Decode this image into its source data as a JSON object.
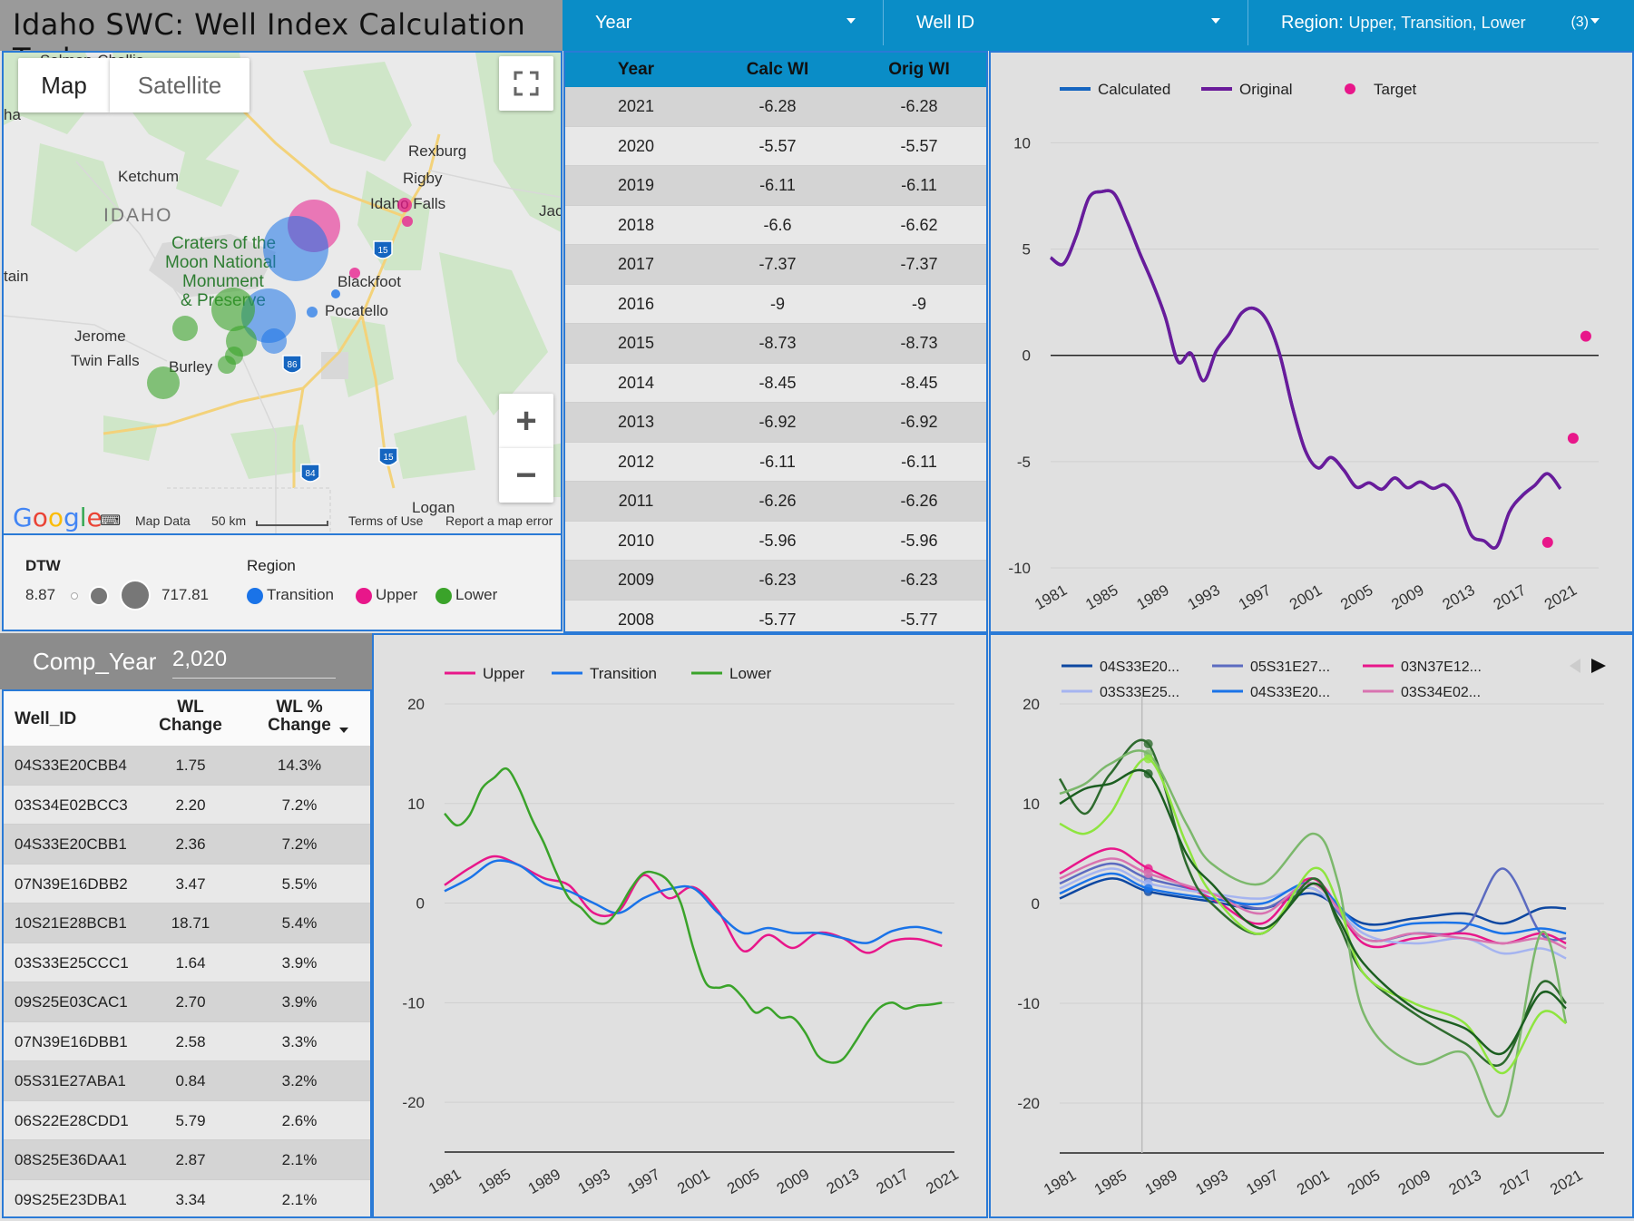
{
  "header": {
    "title": "Idaho SWC: Well Index Calculation Tool"
  },
  "filters": {
    "year_label": "Year",
    "wellid_label": "Well ID",
    "region_label": "Region:",
    "region_value": "Upper, Transition, Lower",
    "region_count": "(3)"
  },
  "map": {
    "tab_map": "Map",
    "tab_satellite": "Satellite",
    "fullscreen_icon": "fullscreen-icon",
    "zoom_in": "+",
    "zoom_out": "−",
    "google_logo": "Google",
    "map_data": "Map Data",
    "scale": "50 km",
    "terms": "Terms of Use",
    "report": "Report a map error",
    "places": [
      "Salmon-Challis",
      "Rexburg",
      "Rigby",
      "Ketchum",
      "IDAHO",
      "Idaho Falls",
      "Jackson",
      "Craters of the",
      "Moon National",
      "Monument",
      "& Preserve",
      "Blackfoot",
      "Pocatello",
      "Jerome",
      "Twin Falls",
      "Burley",
      "Logan",
      "tain",
      "ha"
    ],
    "shields": [
      "15",
      "86",
      "15",
      "84"
    ]
  },
  "legend": {
    "dtw_title": "DTW",
    "dtw_min": "8.87",
    "dtw_max": "717.81",
    "region_title": "Region",
    "items": [
      {
        "label": "Transition",
        "color": "#1a73e8"
      },
      {
        "label": "Upper",
        "color": "#e8178a"
      },
      {
        "label": "Lower",
        "color": "#3aa32a"
      }
    ]
  },
  "year_table": {
    "headers": [
      "Year",
      "Calc WI",
      "Orig WI"
    ],
    "rows": [
      [
        "2021",
        "-6.28",
        "-6.28"
      ],
      [
        "2020",
        "-5.57",
        "-5.57"
      ],
      [
        "2019",
        "-6.11",
        "-6.11"
      ],
      [
        "2018",
        "-6.6",
        "-6.62"
      ],
      [
        "2017",
        "-7.37",
        "-7.37"
      ],
      [
        "2016",
        "-9",
        "-9"
      ],
      [
        "2015",
        "-8.73",
        "-8.73"
      ],
      [
        "2014",
        "-8.45",
        "-8.45"
      ],
      [
        "2013",
        "-6.92",
        "-6.92"
      ],
      [
        "2012",
        "-6.11",
        "-6.11"
      ],
      [
        "2011",
        "-6.26",
        "-6.26"
      ],
      [
        "2010",
        "-5.96",
        "-5.96"
      ],
      [
        "2009",
        "-6.23",
        "-6.23"
      ],
      [
        "2008",
        "-5.77",
        "-5.77"
      ]
    ]
  },
  "comp_year": {
    "label": "Comp_Year",
    "value": "2,020"
  },
  "well_table": {
    "headers": [
      "Well_ID",
      "WL\nChange",
      "WL %\nChange"
    ],
    "rows": [
      [
        "04S33E20CBB4",
        "1.75",
        "14.3%"
      ],
      [
        "03S34E02BCC3",
        "2.20",
        "7.2%"
      ],
      [
        "04S33E20CBB1",
        "2.36",
        "7.2%"
      ],
      [
        "07N39E16DBB2",
        "3.47",
        "5.5%"
      ],
      [
        "10S21E28BCB1",
        "18.71",
        "5.4%"
      ],
      [
        "03S33E25CCC1",
        "1.64",
        "3.9%"
      ],
      [
        "09S25E03CAC1",
        "2.70",
        "3.9%"
      ],
      [
        "07N39E16DBB1",
        "2.58",
        "3.3%"
      ],
      [
        "05S31E27ABA1",
        "0.84",
        "3.2%"
      ],
      [
        "06S22E28CDD1",
        "5.79",
        "2.6%"
      ],
      [
        "08S25E36DAA1",
        "2.87",
        "2.1%"
      ],
      [
        "09S25E23DBA1",
        "3.34",
        "2.1%"
      ]
    ]
  },
  "chart_data": [
    {
      "type": "line",
      "legend_position": "top-left",
      "x_ticks": [
        "1981",
        "1985",
        "1989",
        "1993",
        "1997",
        "2001",
        "2005",
        "2009",
        "2013",
        "2017",
        "2021"
      ],
      "y_ticks": [
        10,
        5,
        0,
        -5,
        -10
      ],
      "ylim": [
        -10,
        11
      ],
      "xlim": [
        1981,
        2024
      ],
      "series": [
        {
          "name": "Calculated",
          "color": "#1565c0",
          "x": [
            1981,
            1982,
            1983,
            1984,
            1985,
            1986,
            1987,
            1988,
            1989,
            1990,
            1991,
            1992,
            1993,
            1994,
            1995,
            1996,
            1997,
            1998,
            1999,
            2000,
            2001,
            2002,
            2003,
            2004,
            2005,
            2006,
            2007,
            2008,
            2009,
            2010,
            2011,
            2012,
            2013,
            2014,
            2015,
            2016,
            2017,
            2018,
            2019,
            2020,
            2021
          ],
          "values": [
            4.6,
            4.3,
            5.6,
            7.4,
            7.7,
            7.6,
            6.3,
            4.8,
            3.4,
            1.8,
            -0.3,
            0.1,
            -1.2,
            0.2,
            1.0,
            2.0,
            2.2,
            1.6,
            0.0,
            -2.5,
            -4.5,
            -5.3,
            -4.8,
            -5.4,
            -6.2,
            -6.0,
            -6.3,
            -5.77,
            -6.23,
            -5.96,
            -6.26,
            -6.11,
            -6.92,
            -8.45,
            -8.73,
            -9.0,
            -7.37,
            -6.6,
            -6.11,
            -5.57,
            -6.28
          ]
        },
        {
          "name": "Original",
          "color": "#6a1b9a",
          "x": [
            1981,
            1982,
            1983,
            1984,
            1985,
            1986,
            1987,
            1988,
            1989,
            1990,
            1991,
            1992,
            1993,
            1994,
            1995,
            1996,
            1997,
            1998,
            1999,
            2000,
            2001,
            2002,
            2003,
            2004,
            2005,
            2006,
            2007,
            2008,
            2009,
            2010,
            2011,
            2012,
            2013,
            2014,
            2015,
            2016,
            2017,
            2018,
            2019,
            2020,
            2021
          ],
          "values": [
            4.6,
            4.3,
            5.6,
            7.4,
            7.7,
            7.6,
            6.3,
            4.8,
            3.4,
            1.8,
            -0.3,
            0.1,
            -1.2,
            0.2,
            1.0,
            2.0,
            2.2,
            1.6,
            0.0,
            -2.5,
            -4.5,
            -5.3,
            -4.8,
            -5.4,
            -6.2,
            -6.0,
            -6.3,
            -5.77,
            -6.23,
            -5.96,
            -6.26,
            -6.11,
            -6.92,
            -8.45,
            -8.73,
            -9.0,
            -7.37,
            -6.62,
            -6.11,
            -5.57,
            -6.28
          ]
        },
        {
          "name": "Target",
          "color": "#e8178a",
          "type": "scatter",
          "x": [
            2020,
            2022,
            2023
          ],
          "values": [
            -8.8,
            -3.9,
            0.9
          ]
        }
      ]
    },
    {
      "type": "line",
      "legend_position": "top-left",
      "x_ticks": [
        "1981",
        "1985",
        "1989",
        "1993",
        "1997",
        "2001",
        "2005",
        "2009",
        "2013",
        "2017",
        "2021"
      ],
      "y_ticks": [
        20,
        10,
        0,
        -10,
        -20
      ],
      "ylim": [
        -25,
        20
      ],
      "xlim": [
        1981,
        2022
      ],
      "series": [
        {
          "name": "Upper",
          "color": "#e8178a",
          "x": [
            1981,
            1983,
            1985,
            1987,
            1989,
            1991,
            1993,
            1995,
            1997,
            1999,
            2001,
            2003,
            2005,
            2007,
            2009,
            2011,
            2013,
            2015,
            2017,
            2019,
            2021
          ],
          "values": [
            1.8,
            3.5,
            4.7,
            3.8,
            2.5,
            1.8,
            -1.0,
            -0.8,
            2.8,
            0.5,
            1.6,
            -0.8,
            -4.8,
            -3.2,
            -4.5,
            -3.0,
            -3.5,
            -5.0,
            -3.8,
            -3.6,
            -4.3
          ]
        },
        {
          "name": "Transition",
          "color": "#1a73e8",
          "x": [
            1981,
            1983,
            1985,
            1987,
            1989,
            1991,
            1993,
            1995,
            1997,
            1999,
            2001,
            2003,
            2005,
            2007,
            2009,
            2011,
            2013,
            2015,
            2017,
            2019,
            2021
          ],
          "values": [
            1.2,
            2.5,
            4.2,
            3.8,
            2.0,
            1.2,
            0.0,
            -1.0,
            0.5,
            1.4,
            1.5,
            -1.0,
            -3.0,
            -2.5,
            -3.0,
            -3.0,
            -3.5,
            -4.0,
            -2.8,
            -2.4,
            -3.0
          ]
        },
        {
          "name": "Lower",
          "color": "#3aa32a",
          "x": [
            1981,
            1982,
            1983,
            1984,
            1985,
            1986,
            1987,
            1988,
            1989,
            1990,
            1991,
            1992,
            1993,
            1994,
            1995,
            1996,
            1997,
            1998,
            1999,
            2000,
            2001,
            2002,
            2003,
            2004,
            2005,
            2006,
            2007,
            2008,
            2009,
            2010,
            2011,
            2012,
            2013,
            2014,
            2015,
            2016,
            2017,
            2018,
            2019,
            2020,
            2021
          ],
          "values": [
            9.0,
            7.8,
            8.8,
            11.5,
            12.6,
            13.5,
            11.5,
            8.5,
            6.0,
            3.0,
            0.5,
            -0.5,
            -1.8,
            -2.0,
            -0.6,
            1.5,
            3.0,
            3.0,
            2.2,
            0.0,
            -4.5,
            -8.0,
            -8.5,
            -8.3,
            -9.5,
            -11.0,
            -10.5,
            -11.5,
            -11.5,
            -13.0,
            -15.3,
            -16.0,
            -15.7,
            -14.0,
            -12.0,
            -10.5,
            -10.0,
            -10.6,
            -10.3,
            -10.2,
            -10.0
          ]
        }
      ]
    },
    {
      "type": "line",
      "legend_position": "top",
      "x_ticks": [
        "1981",
        "1985",
        "1989",
        "1993",
        "1997",
        "2001",
        "2005",
        "2009",
        "2013",
        "2017",
        "2021"
      ],
      "y_ticks": [
        20,
        10,
        0,
        -10,
        -20
      ],
      "ylim": [
        -25,
        20
      ],
      "xlim": [
        1981,
        2024
      ],
      "legend_labels": [
        "04S33E20...",
        "05S31E27...",
        "03N37E12...",
        "03S33E25...",
        "04S33E20...",
        "03S34E02..."
      ],
      "series": [
        {
          "name": "04S33E20...",
          "color": "#0d47a1",
          "x": [
            1981,
            1985,
            1988,
            1993,
            1997,
            2001,
            2005,
            2009,
            2013,
            2016,
            2019,
            2021
          ],
          "values": [
            0.5,
            2.5,
            1.2,
            0.2,
            -0.5,
            1.0,
            -2.0,
            -1.5,
            -1.0,
            -2.0,
            -0.5,
            -0.5
          ]
        },
        {
          "name": "05S31E27...",
          "color": "#5c6bc0",
          "x": [
            1981,
            1985,
            1988,
            1993,
            1997,
            2001,
            2005,
            2009,
            2013,
            2016,
            2019,
            2021
          ],
          "values": [
            2.0,
            4.0,
            2.5,
            1.0,
            -0.5,
            1.5,
            -3.5,
            -3.0,
            -2.5,
            3.5,
            -3.0,
            -3.5
          ]
        },
        {
          "name": "03N37E12...",
          "color": "#e8178a",
          "x": [
            1981,
            1985,
            1988,
            1993,
            1997,
            2001,
            2005,
            2009,
            2013,
            2016,
            2019,
            2021
          ],
          "values": [
            3.0,
            5.5,
            3.5,
            0.5,
            -2.0,
            2.5,
            -4.0,
            -3.5,
            -3.0,
            -4.0,
            -3.0,
            -4.0
          ]
        },
        {
          "name": "03S33E25...",
          "color": "#a5b4f0",
          "x": [
            1981,
            1985,
            1988,
            1993,
            1997,
            2001,
            2005,
            2009,
            2013,
            2016,
            2019,
            2021
          ],
          "values": [
            1.5,
            3.5,
            2.0,
            1.0,
            0.5,
            1.5,
            -3.0,
            -4.0,
            -3.5,
            -5.0,
            -4.5,
            -5.5
          ]
        },
        {
          "name": "04S33E20...",
          "color": "#1a73e8",
          "x": [
            1981,
            1985,
            1988,
            1993,
            1997,
            2001,
            2005,
            2009,
            2013,
            2016,
            2019,
            2021
          ],
          "values": [
            1.0,
            3.0,
            1.5,
            0.5,
            0.0,
            2.0,
            -2.5,
            -2.0,
            -2.0,
            -3.0,
            -2.5,
            -3.0
          ]
        },
        {
          "name": "03S34E02...",
          "color": "#d873b0",
          "x": [
            1981,
            1985,
            1988,
            1993,
            1997,
            2001,
            2005,
            2009,
            2013,
            2016,
            2019,
            2021
          ],
          "values": [
            2.5,
            4.5,
            3.0,
            1.0,
            -1.0,
            2.0,
            -3.5,
            -3.0,
            -3.5,
            -4.0,
            -3.5,
            -4.5
          ]
        },
        {
          "color": "#2e6b2e",
          "x": [
            1981,
            1983,
            1985,
            1988,
            1991,
            1993,
            1997,
            2001,
            2003,
            2005,
            2009,
            2013,
            2016,
            2019,
            2021
          ],
          "values": [
            12.5,
            9.0,
            13.0,
            16.0,
            4.0,
            0.0,
            -3.0,
            2.5,
            -2.0,
            -7.0,
            -11.0,
            -14.0,
            -16.0,
            -8.0,
            -10.0
          ]
        },
        {
          "color": "#7cb86c",
          "x": [
            1981,
            1983,
            1985,
            1988,
            1991,
            1993,
            1997,
            2001,
            2003,
            2005,
            2009,
            2013,
            2016,
            2019,
            2021
          ],
          "values": [
            11.0,
            12.0,
            14.0,
            15.0,
            8.0,
            4.0,
            2.0,
            7.0,
            2.0,
            -11.0,
            -16.0,
            -15.0,
            -21.0,
            -3.0,
            -12.0
          ]
        },
        {
          "color": "#8ee53f",
          "x": [
            1981,
            1983,
            1985,
            1988,
            1991,
            1993,
            1997,
            2001,
            2003,
            2005,
            2009,
            2013,
            2016,
            2019,
            2021
          ],
          "values": [
            8.0,
            7.0,
            9.0,
            14.5,
            6.0,
            1.0,
            -3.0,
            3.5,
            0.0,
            -7.0,
            -10.0,
            -12.0,
            -17.0,
            -11.0,
            -12.0
          ]
        },
        {
          "color": "#1b5e20",
          "x": [
            1981,
            1983,
            1985,
            1988,
            1991,
            1993,
            1997,
            2001,
            2003,
            2005,
            2009,
            2013,
            2016,
            2019,
            2021
          ],
          "values": [
            10.0,
            11.5,
            12.0,
            13.0,
            5.0,
            2.0,
            -2.5,
            2.0,
            -1.5,
            -6.0,
            -10.5,
            -12.5,
            -15.0,
            -9.0,
            -10.5
          ]
        }
      ]
    }
  ],
  "legends": {
    "wi": [
      "Calculated",
      "Original",
      "Target"
    ],
    "region": [
      "Upper",
      "Transition",
      "Lower"
    ],
    "wells": [
      "04S33E20...",
      "05S31E27...",
      "03N37E12...",
      "03S33E25...",
      "04S33E20...",
      "03S34E02..."
    ]
  }
}
